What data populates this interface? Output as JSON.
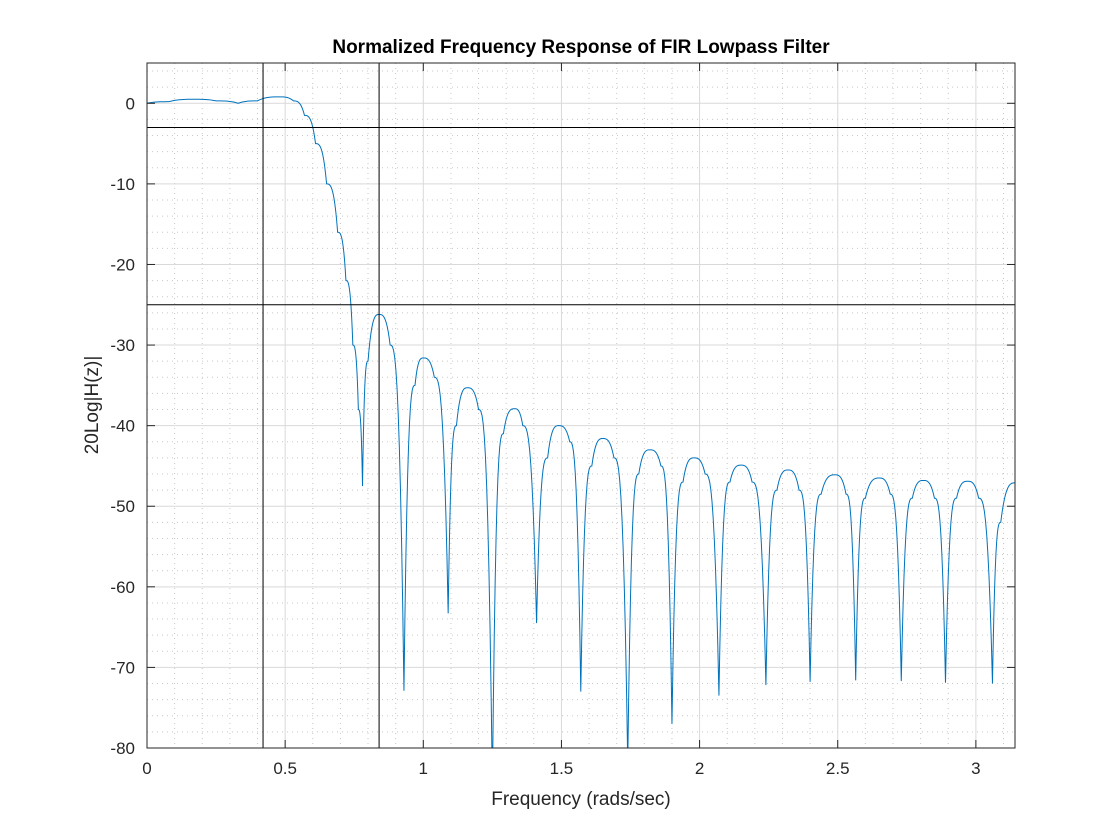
{
  "chart_data": {
    "type": "line",
    "title": "Normalized Frequency Response of FIR Lowpass Filter",
    "xlabel": "Frequency (rads/sec)",
    "ylabel": "20Log|H(z)|",
    "xlim": [
      0,
      3.14159
    ],
    "ylim": [
      -80,
      5
    ],
    "xticks": [
      0,
      0.5,
      1,
      1.5,
      2,
      2.5,
      3
    ],
    "xtick_labels": [
      "0",
      "0.5",
      "1",
      "1.5",
      "2",
      "2.5",
      "3"
    ],
    "yticks": [
      0,
      -10,
      -20,
      -30,
      -40,
      -50,
      -60,
      -70,
      -80
    ],
    "ytick_labels": [
      "0",
      "-10",
      "-20",
      "-30",
      "-40",
      "-50",
      "-60",
      "-70",
      "-80"
    ],
    "grid": "major and minor",
    "color": "#0072BD",
    "reference_lines": {
      "horizontal": [
        -3,
        -25
      ],
      "vertical": [
        0.42,
        0.84
      ]
    },
    "series": [
      {
        "points": [
          [
            0,
            0
          ],
          [
            0.08,
            0.2
          ],
          [
            0.17,
            0.5
          ],
          [
            0.25,
            0.3
          ],
          [
            0.33,
            0.0
          ],
          [
            0.4,
            0.3
          ],
          [
            0.48,
            0.8
          ],
          [
            0.53,
            0.3
          ],
          [
            0.57,
            -1.5
          ],
          [
            0.61,
            -5
          ],
          [
            0.65,
            -10
          ],
          [
            0.69,
            -16
          ],
          [
            0.72,
            -22
          ],
          [
            0.745,
            -30
          ],
          [
            0.765,
            -38
          ],
          [
            0.78,
            -47.5
          ],
          [
            0.8,
            -32
          ],
          [
            0.84,
            -26.2
          ],
          [
            0.88,
            -30
          ],
          [
            0.93,
            -72.9
          ],
          [
            0.97,
            -35
          ],
          [
            1.0,
            -31.6
          ],
          [
            1.04,
            -34
          ],
          [
            1.09,
            -63.3
          ],
          [
            1.12,
            -40
          ],
          [
            1.16,
            -35.3
          ],
          [
            1.2,
            -38
          ],
          [
            1.25,
            -85
          ],
          [
            1.29,
            -41
          ],
          [
            1.33,
            -37.9
          ],
          [
            1.36,
            -40
          ],
          [
            1.41,
            -64.5
          ],
          [
            1.45,
            -44
          ],
          [
            1.49,
            -40
          ],
          [
            1.53,
            -42
          ],
          [
            1.57,
            -73
          ],
          [
            1.61,
            -45
          ],
          [
            1.65,
            -41.6
          ],
          [
            1.69,
            -44
          ],
          [
            1.74,
            -82
          ],
          [
            1.78,
            -46
          ],
          [
            1.82,
            -43
          ],
          [
            1.86,
            -45
          ],
          [
            1.9,
            -77
          ],
          [
            1.94,
            -47
          ],
          [
            1.98,
            -44
          ],
          [
            2.02,
            -46
          ],
          [
            2.07,
            -73.5
          ],
          [
            2.11,
            -47
          ],
          [
            2.15,
            -44.9
          ],
          [
            2.19,
            -47
          ],
          [
            2.24,
            -72.2
          ],
          [
            2.28,
            -48
          ],
          [
            2.32,
            -45.5
          ],
          [
            2.36,
            -48
          ],
          [
            2.4,
            -71.8
          ],
          [
            2.44,
            -48.5
          ],
          [
            2.49,
            -46.1
          ],
          [
            2.53,
            -48.5
          ],
          [
            2.565,
            -71.6
          ],
          [
            2.6,
            -49
          ],
          [
            2.65,
            -46.5
          ],
          [
            2.69,
            -48.5
          ],
          [
            2.73,
            -71.7
          ],
          [
            2.77,
            -49
          ],
          [
            2.81,
            -46.8
          ],
          [
            2.85,
            -49
          ],
          [
            2.89,
            -71.9
          ],
          [
            2.93,
            -49
          ],
          [
            2.97,
            -46.9
          ],
          [
            3.01,
            -49
          ],
          [
            3.06,
            -72
          ],
          [
            3.09,
            -52
          ],
          [
            3.1416,
            -47.1
          ]
        ]
      }
    ]
  }
}
